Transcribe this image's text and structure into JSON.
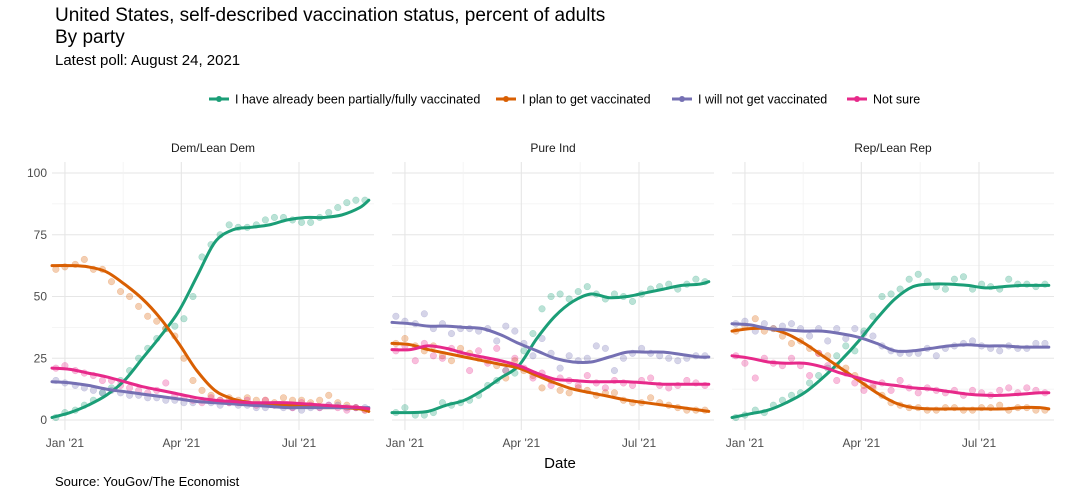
{
  "title": "United States, self-described vaccination status, percent of adults",
  "subtitle": "By party",
  "caption": "Latest poll: August 24, 2021",
  "source": "Source: YouGov/The Economist",
  "chart_data": {
    "type": "line",
    "facets": [
      "Dem/Lean Dem",
      "Pure Ind",
      "Rep/Lean Rep"
    ],
    "xlabel": "Date",
    "ylabel": "",
    "ylim": [
      0,
      100
    ],
    "xlim": [
      "2020-12-22",
      "2021-08-28"
    ],
    "x_ticks": [
      {
        "date": "2021-01-01",
        "label": "Jan '21"
      },
      {
        "date": "2021-04-01",
        "label": "Apr '21"
      },
      {
        "date": "2021-07-01",
        "label": "Jul '21"
      }
    ],
    "y_ticks": [
      0,
      25,
      50,
      75,
      100
    ],
    "grid": true,
    "legend_position": "top",
    "series": [
      {
        "name": "I have already been partially/fully vaccinated",
        "color": "#1b9e77"
      },
      {
        "name": "I plan to get vaccinated",
        "color": "#d95f02"
      },
      {
        "name": "I will not get vaccinated",
        "color": "#7570b3"
      },
      {
        "name": "Not sure",
        "color": "#e7298a"
      }
    ],
    "panels": [
      {
        "facet": "Dem/Lean Dem",
        "trend": {
          "dates": [
            "2020-12-22",
            "2021-01-05",
            "2021-01-19",
            "2021-02-02",
            "2021-02-16",
            "2021-03-02",
            "2021-03-16",
            "2021-03-30",
            "2021-04-13",
            "2021-04-27",
            "2021-05-11",
            "2021-05-25",
            "2021-06-08",
            "2021-06-22",
            "2021-07-06",
            "2021-07-20",
            "2021-08-03",
            "2021-08-17",
            "2021-08-24"
          ],
          "values": [
            [
              1,
              3,
              6,
              10,
              16,
              25,
              34,
              44,
              58,
              72,
              77,
              78,
              79,
              81,
              82,
              82,
              83,
              86,
              89
            ],
            [
              62.5,
              62.5,
              62,
              60,
              55,
              49,
              41,
              31,
              20,
              12,
              8.5,
              7,
              6,
              6,
              5.5,
              5,
              5,
              4.5,
              3.5
            ],
            [
              15.5,
              15,
              14,
              12.5,
              11.5,
              10.5,
              9.5,
              8.5,
              7.5,
              7,
              6.5,
              6,
              5.5,
              5,
              5,
              5,
              5,
              5,
              5
            ],
            [
              21,
              20.5,
              19,
              17.5,
              15.5,
              13.5,
              12,
              10.5,
              9,
              8,
              7.5,
              7,
              7,
              7,
              6.5,
              6,
              5.5,
              5,
              4.5
            ]
          ]
        },
        "points": {
          "dates": [
            "2020-12-25",
            "2021-01-01",
            "2021-01-09",
            "2021-01-16",
            "2021-01-23",
            "2021-01-30",
            "2021-02-06",
            "2021-02-13",
            "2021-02-20",
            "2021-02-27",
            "2021-03-06",
            "2021-03-13",
            "2021-03-20",
            "2021-03-27",
            "2021-04-03",
            "2021-04-10",
            "2021-04-17",
            "2021-04-24",
            "2021-05-01",
            "2021-05-08",
            "2021-05-15",
            "2021-05-22",
            "2021-05-29",
            "2021-06-05",
            "2021-06-12",
            "2021-06-19",
            "2021-06-26",
            "2021-07-03",
            "2021-07-10",
            "2021-07-17",
            "2021-07-24",
            "2021-07-31",
            "2021-08-07",
            "2021-08-14",
            "2021-08-21"
          ],
          "values": [
            [
              1,
              3,
              4,
              6,
              8,
              11,
              13,
              16,
              20,
              25,
              29,
              33,
              37,
              38,
              41,
              50,
              66,
              71,
              75,
              79,
              78,
              78,
              79,
              81,
              82,
              82,
              81,
              80,
              80,
              82,
              84,
              86,
              88,
              89,
              89
            ],
            [
              61,
              62,
              63,
              65,
              61,
              61,
              56,
              52,
              50,
              46,
              42,
              40,
              37,
              34,
              25,
              16,
              12,
              10,
              8,
              9,
              8,
              9,
              8,
              8,
              7,
              9,
              8,
              8,
              7,
              8,
              10,
              7,
              6,
              5,
              4
            ],
            [
              16,
              15,
              14,
              13,
              12,
              11,
              12,
              11,
              10,
              10,
              9,
              9,
              8,
              8,
              7,
              7,
              8,
              7,
              6,
              7,
              6,
              6,
              5,
              5,
              6,
              5,
              5,
              4,
              5,
              5,
              6,
              6,
              5,
              5,
              5
            ],
            [
              21,
              22,
              20,
              19,
              18,
              16,
              16,
              14,
              13,
              12,
              11,
              12,
              15,
              10,
              9,
              8,
              7,
              9,
              8,
              7,
              7,
              8,
              6,
              8,
              6,
              6,
              5,
              7,
              6,
              5,
              6,
              5,
              4,
              5,
              4
            ]
          ]
        }
      },
      {
        "facet": "Pure Ind",
        "trend": {
          "dates": [
            "2020-12-22",
            "2021-01-05",
            "2021-01-19",
            "2021-02-02",
            "2021-02-16",
            "2021-03-02",
            "2021-03-16",
            "2021-03-30",
            "2021-04-13",
            "2021-04-27",
            "2021-05-11",
            "2021-05-25",
            "2021-06-08",
            "2021-06-22",
            "2021-07-06",
            "2021-07-20",
            "2021-08-03",
            "2021-08-17",
            "2021-08-24"
          ],
          "values": [
            [
              3,
              3,
              3.5,
              6,
              8,
              12,
              17,
              22,
              33,
              42,
              48,
              51,
              49.5,
              50,
              51.5,
              53,
              54.5,
              55,
              56
            ],
            [
              31,
              30.5,
              28.5,
              27,
              25.5,
              24,
              22.5,
              21,
              18,
              15,
              12.5,
              11,
              9.5,
              8,
              7,
              6,
              5,
              4,
              3.5
            ],
            [
              39.5,
              39,
              38,
              38,
              37.5,
              37,
              34.5,
              31,
              28,
              25,
              23.5,
              23.5,
              25.5,
              27.5,
              27.5,
              27.5,
              26.5,
              25.5,
              25.5
            ],
            [
              28.5,
              28.5,
              30,
              29,
              27,
              25.5,
              24,
              22,
              19,
              16.5,
              16,
              15.5,
              15.5,
              15.5,
              15,
              14.5,
              14.5,
              14.5,
              14.5
            ]
          ]
        },
        "points": {
          "dates": [
            "2020-12-25",
            "2021-01-01",
            "2021-01-09",
            "2021-01-16",
            "2021-01-23",
            "2021-01-30",
            "2021-02-06",
            "2021-02-13",
            "2021-02-20",
            "2021-02-27",
            "2021-03-06",
            "2021-03-13",
            "2021-03-20",
            "2021-03-27",
            "2021-04-03",
            "2021-04-10",
            "2021-04-17",
            "2021-04-24",
            "2021-05-01",
            "2021-05-08",
            "2021-05-15",
            "2021-05-22",
            "2021-05-29",
            "2021-06-05",
            "2021-06-12",
            "2021-06-19",
            "2021-06-26",
            "2021-07-03",
            "2021-07-10",
            "2021-07-17",
            "2021-07-24",
            "2021-07-31",
            "2021-08-07",
            "2021-08-14",
            "2021-08-21"
          ],
          "values": [
            [
              3,
              5,
              2,
              2,
              3,
              7,
              6,
              7,
              8,
              10,
              14,
              16,
              20,
              19,
              28,
              35,
              45,
              50,
              51,
              49,
              52,
              54,
              51,
              49,
              51,
              50,
              48,
              51,
              53,
              54,
              55,
              53,
              55,
              57,
              56
            ],
            [
              31,
              33,
              30,
              28,
              30,
              26,
              24,
              29,
              27,
              25,
              24,
              22,
              17,
              24,
              20,
              18,
              13,
              16,
              12,
              11,
              13,
              12,
              10,
              11,
              11,
              8,
              7,
              7,
              9,
              7,
              6,
              5,
              4,
              4,
              4
            ],
            [
              42,
              40,
              39,
              43,
              37,
              39,
              35,
              37,
              37,
              36,
              37,
              32,
              38,
              36,
              31,
              26,
              33,
              27,
              21,
              26,
              24,
              25,
              30,
              29,
              20,
              25,
              27,
              29,
              27,
              26,
              25,
              24,
              25,
              26,
              26
            ],
            [
              28,
              30,
              24,
              31,
              26,
              25,
              29,
              27,
              20,
              28,
              23,
              29,
              20,
              25,
              21,
              17,
              19,
              14,
              17,
              16,
              14,
              18,
              15,
              13,
              16,
              15,
              14,
              16,
              17,
              14,
              13,
              14,
              16,
              15,
              14
            ]
          ]
        }
      },
      {
        "facet": "Rep/Lean Rep",
        "trend": {
          "dates": [
            "2020-12-22",
            "2021-01-05",
            "2021-01-19",
            "2021-02-02",
            "2021-02-16",
            "2021-03-02",
            "2021-03-16",
            "2021-03-30",
            "2021-04-13",
            "2021-04-27",
            "2021-05-11",
            "2021-05-25",
            "2021-06-08",
            "2021-06-22",
            "2021-07-06",
            "2021-07-20",
            "2021-08-03",
            "2021-08-17",
            "2021-08-24"
          ],
          "values": [
            [
              1,
              2.5,
              4,
              7,
              11,
              17,
              24,
              32,
              41,
              49,
              54,
              55,
              55,
              54.5,
              53.5,
              54,
              54.5,
              54.5,
              54.5
            ],
            [
              36,
              37,
              37,
              35,
              31,
              26,
              21,
              16,
              11,
              7,
              5,
              4.5,
              4.5,
              4.5,
              4.5,
              4.5,
              5,
              5,
              4.5
            ],
            [
              39,
              38.5,
              37,
              36.5,
              36,
              36,
              35,
              33.5,
              31,
              28,
              28,
              29,
              30,
              30.5,
              30,
              30,
              29.5,
              29.5,
              29.5
            ],
            [
              26,
              25,
              23.5,
              23,
              23,
              21.5,
              19,
              17,
              15,
              14,
              13,
              12.5,
              11.5,
              10.5,
              10,
              10,
              10.5,
              11,
              11
            ]
          ]
        },
        "points": {
          "dates": [
            "2020-12-25",
            "2021-01-01",
            "2021-01-09",
            "2021-01-16",
            "2021-01-23",
            "2021-01-30",
            "2021-02-06",
            "2021-02-13",
            "2021-02-20",
            "2021-02-27",
            "2021-03-06",
            "2021-03-13",
            "2021-03-20",
            "2021-03-27",
            "2021-04-03",
            "2021-04-10",
            "2021-04-17",
            "2021-04-24",
            "2021-05-01",
            "2021-05-08",
            "2021-05-15",
            "2021-05-22",
            "2021-05-29",
            "2021-06-05",
            "2021-06-12",
            "2021-06-19",
            "2021-06-26",
            "2021-07-03",
            "2021-07-10",
            "2021-07-17",
            "2021-07-24",
            "2021-07-31",
            "2021-08-07",
            "2021-08-14",
            "2021-08-21"
          ],
          "values": [
            [
              1,
              2,
              4,
              3,
              6,
              8,
              10,
              11,
              15,
              18,
              21,
              26,
              30,
              28,
              36,
              42,
              50,
              51,
              53,
              57,
              59,
              56,
              54,
              53,
              57,
              58,
              53,
              55,
              54,
              53,
              57,
              55,
              55,
              54,
              55
            ],
            [
              36,
              38,
              41,
              36,
              37,
              34,
              31,
              32,
              29,
              27,
              26,
              22,
              21,
              18,
              14,
              13,
              10,
              7,
              6,
              5,
              5,
              4,
              4,
              5,
              5,
              4,
              4,
              5,
              5,
              6,
              4,
              5,
              5,
              4,
              4
            ],
            [
              39,
              40,
              36,
              39,
              37,
              38,
              39,
              37,
              34,
              37,
              32,
              37,
              33,
              37,
              35,
              34,
              30,
              28,
              27,
              27,
              27,
              29,
              26,
              29,
              30,
              31,
              32,
              30,
              29,
              28,
              30,
              29,
              29,
              31,
              31
            ],
            [
              26,
              23,
              17,
              25,
              23,
              22,
              25,
              22,
              18,
              27,
              22,
              16,
              19,
              15,
              12,
              14,
              15,
              12,
              16,
              13,
              11,
              13,
              12,
              11,
              12,
              10,
              12,
              11,
              10,
              12,
              13,
              11,
              13,
              12,
              11
            ]
          ]
        }
      }
    ]
  }
}
